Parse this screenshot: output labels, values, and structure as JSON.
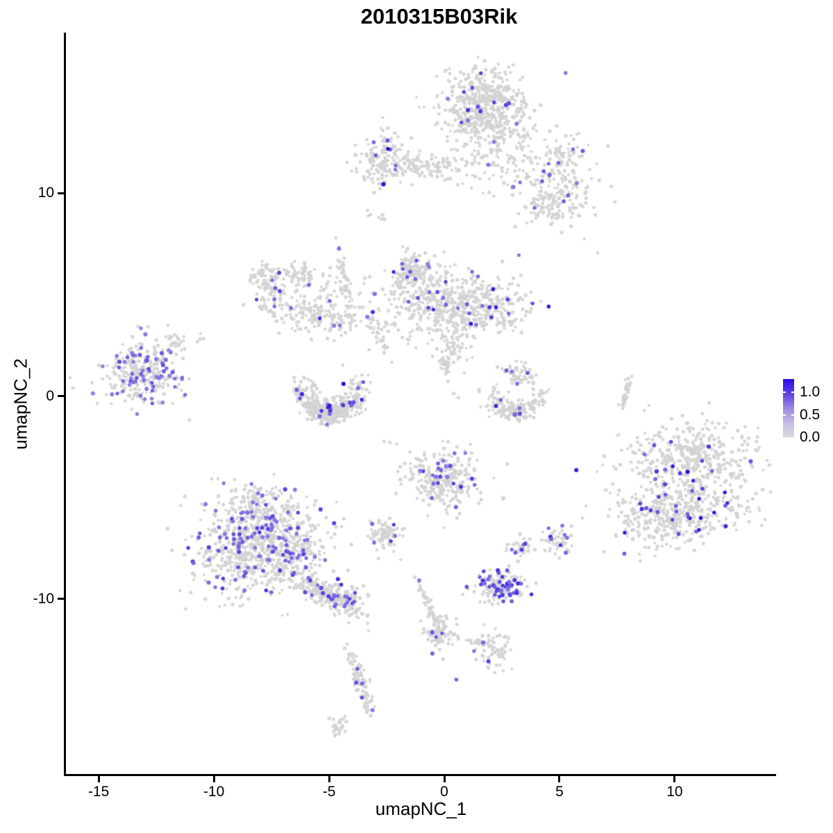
{
  "chart_data": {
    "type": "scatter",
    "title": "2010315B03Rik",
    "xlabel": "umapNC_1",
    "ylabel": "umapNC_2",
    "x_tick_labels": [
      "-15",
      "-10",
      "-5",
      "0",
      "5",
      "10"
    ],
    "x_tick_values": [
      -15,
      -10,
      -5,
      0,
      5,
      10
    ],
    "y_tick_labels": [
      "10",
      "0",
      "-10"
    ],
    "y_tick_values": [
      10,
      0,
      -10
    ],
    "xlim": [
      -16.42,
      14.4
    ],
    "ylim": [
      -18.63,
      17.92
    ],
    "grid": false,
    "legend_position": "right",
    "colors": {
      "background": "#ffffff",
      "axis": "#000000",
      "base_point": "#d3d3d3",
      "expression_low": "#b7abe4",
      "expression_high": "#2008dc"
    },
    "point_radius": 2.3,
    "seed": 42,
    "legend": {
      "value_range": [
        0,
        1.3
      ],
      "ticks": [
        {
          "label": "1.0",
          "value": 1.0,
          "dash": true
        },
        {
          "label": "0.5",
          "value": 0.5,
          "dash": true
        },
        {
          "label": "0.0",
          "value": 0.0,
          "dash": false
        }
      ],
      "gradient_stops": [
        {
          "p": 0.0,
          "c": "#d9d9d9"
        },
        {
          "p": 0.22,
          "c": "#c9c0e6"
        },
        {
          "p": 0.5,
          "c": "#9d88e0"
        },
        {
          "p": 0.77,
          "c": "#5b3be0"
        },
        {
          "p": 1.0,
          "c": "#2a0ce8"
        }
      ]
    },
    "clusters": [
      {
        "name": "top-main",
        "shape": "blob",
        "cx": 1.75,
        "cy": 14.2,
        "sx": 0.9,
        "sy": 0.95,
        "rot": 0,
        "n": 560,
        "frac": 0.035,
        "hi": [
          0.3,
          0.8
        ]
      },
      {
        "name": "top-south",
        "shape": "blob",
        "cx": 3.16,
        "cy": 11.6,
        "sx": 1.5,
        "sy": 0.95,
        "rot": 0,
        "n": 150,
        "frac": 0.03,
        "hi": [
          0.3,
          0.7
        ]
      },
      {
        "name": "top-arm-knob",
        "shape": "blob",
        "cx": 5.2,
        "cy": 11.7,
        "sx": 0.5,
        "sy": 0.55,
        "rot": 0,
        "n": 65,
        "frac": 0.03,
        "hi": [
          0.3,
          0.6
        ]
      },
      {
        "name": "right-mid-blob",
        "shape": "blob",
        "cx": 5.27,
        "cy": 9.86,
        "sx": 0.8,
        "sy": 0.6,
        "rot": 0,
        "n": 100,
        "frac": 0.07,
        "hi": [
          0.3,
          0.7
        ]
      },
      {
        "name": "below-left-blob",
        "shape": "blob",
        "cx": 4.4,
        "cy": 9.1,
        "sx": 0.55,
        "sy": 0.45,
        "rot": 0,
        "n": 60,
        "frac": 0.03,
        "hi": [
          0.3,
          0.6
        ]
      },
      {
        "name": "upper-left-knob",
        "shape": "blob",
        "cx": -2.65,
        "cy": 11.74,
        "sx": 0.55,
        "sy": 0.62,
        "rot": 0,
        "n": 140,
        "frac": 0.06,
        "hi": [
          0.4,
          1.0
        ]
      },
      {
        "name": "upper-left-band",
        "shape": "blob",
        "cx": -0.69,
        "cy": 11.4,
        "sx": 0.9,
        "sy": 0.35,
        "rot": -5,
        "n": 110,
        "frac": 0.015,
        "hi": [
          0.3,
          0.6
        ]
      },
      {
        "name": "hook-head",
        "shape": "blob",
        "cx": -7.7,
        "cy": 5.4,
        "sx": 0.33,
        "sy": 0.6,
        "rot": 20,
        "n": 90,
        "frac": 0.05,
        "hi": [
          0.3,
          0.7
        ]
      },
      {
        "name": "hook-top",
        "shape": "blob",
        "cx": -6.6,
        "cy": 6.0,
        "sx": 0.55,
        "sy": 0.3,
        "rot": -10,
        "n": 70,
        "frac": 0.02,
        "hi": [
          0.3,
          0.6
        ]
      },
      {
        "name": "band-down",
        "shape": "blob",
        "cx": -5.66,
        "cy": 3.9,
        "sx": 1.0,
        "sy": 0.42,
        "rot": -15,
        "n": 160,
        "frac": 0.05,
        "hi": [
          0.3,
          0.75
        ]
      },
      {
        "name": "sparse-mid",
        "shape": "blob",
        "cx": -4.97,
        "cy": 5.3,
        "sx": 0.85,
        "sy": 0.55,
        "rot": 0,
        "n": 50,
        "frac": 0.02,
        "hi": [
          0.3,
          0.6
        ]
      },
      {
        "name": "v-trail",
        "shape": "blob",
        "cx": -4.28,
        "cy": 5.6,
        "sx": 1.15,
        "sy": 0.09,
        "rot": -80,
        "n": 50,
        "frac": 0.02,
        "hi": [
          0.3,
          0.6
        ]
      },
      {
        "name": "diag-small",
        "shape": "blob",
        "cx": -2.83,
        "cy": 2.94,
        "sx": 0.8,
        "sy": 0.12,
        "rot": -60,
        "n": 30,
        "frac": 0.03,
        "hi": [
          0.3,
          0.6
        ]
      },
      {
        "name": "mid-knob",
        "shape": "blob",
        "cx": -1.45,
        "cy": 6.2,
        "sx": 0.42,
        "sy": 0.38,
        "rot": 0,
        "n": 120,
        "frac": 0.08,
        "hi": [
          0.3,
          0.8
        ]
      },
      {
        "name": "mid-main",
        "shape": "blob",
        "cx": -0.35,
        "cy": 4.6,
        "sx": 1.35,
        "sy": 0.95,
        "rot": 0,
        "n": 380,
        "frac": 0.05,
        "hi": [
          0.3,
          0.8
        ]
      },
      {
        "name": "mid-right-lobe",
        "shape": "blob",
        "cx": 1.81,
        "cy": 4.27,
        "sx": 1.0,
        "sy": 0.7,
        "rot": 0,
        "n": 220,
        "frac": 0.06,
        "hi": [
          0.35,
          0.9
        ]
      },
      {
        "name": "mid-funnel",
        "shape": "blob",
        "cx": 0.45,
        "cy": 2.63,
        "sx": 0.4,
        "sy": 0.6,
        "rot": 0,
        "n": 55,
        "frac": 0.02,
        "hi": [
          0.3,
          0.6
        ]
      },
      {
        "name": "mid-tail",
        "shape": "blob",
        "cx": 0.0,
        "cy": 1.54,
        "sx": 0.5,
        "sy": 0.1,
        "rot": -70,
        "n": 25,
        "frac": 0.05,
        "hi": [
          0.3,
          0.6
        ]
      },
      {
        "name": "left-cluster",
        "shape": "blob",
        "cx": -13.1,
        "cy": 1.15,
        "sx": 0.85,
        "sy": 0.8,
        "rot": 0,
        "n": 300,
        "frac": 0.22,
        "hi": [
          0.25,
          0.6
        ]
      },
      {
        "name": "left-arm",
        "shape": "blob",
        "cx": -11.54,
        "cy": 2.63,
        "sx": 0.3,
        "sy": 0.18,
        "rot": -35,
        "n": 22,
        "frac": 0.05,
        "hi": [
          0.3,
          0.55
        ]
      },
      {
        "name": "u-crescent",
        "shape": "arc",
        "cx": -4.95,
        "cy": 0.45,
        "r": 1.3,
        "w": 0.3,
        "a0": 150,
        "a1": 390,
        "n": 400,
        "frac": 0.07,
        "hi": [
          0.35,
          1.0
        ]
      },
      {
        "name": "crescent-right",
        "shape": "arc",
        "cx": 3.07,
        "cy": 0.3,
        "r": 1.1,
        "w": 0.25,
        "a0": 150,
        "a1": 390,
        "n": 160,
        "frac": 0.04,
        "hi": [
          0.35,
          1.0
        ]
      },
      {
        "name": "crescent-right-head",
        "shape": "blob",
        "cx": 3.25,
        "cy": 1.05,
        "sx": 0.38,
        "sy": 0.33,
        "rot": 0,
        "n": 55,
        "frac": 0.05,
        "hi": [
          0.3,
          0.6
        ]
      },
      {
        "name": "v-streak-right",
        "shape": "blob",
        "cx": 7.92,
        "cy": 0.27,
        "sx": 0.5,
        "sy": 0.07,
        "rot": 80,
        "n": 35,
        "frac": 0,
        "hi": [
          0.3,
          0.5
        ]
      },
      {
        "name": "right-cluster-top",
        "shape": "blob",
        "cx": 10.8,
        "cy": -3.1,
        "sx": 1.35,
        "sy": 0.85,
        "rot": -8,
        "n": 430,
        "frac": 0.04,
        "hi": [
          0.4,
          1.0
        ]
      },
      {
        "name": "right-cluster-bottom",
        "shape": "blob",
        "cx": 10.0,
        "cy": -5.8,
        "sx": 1.35,
        "sy": 0.8,
        "rot": 8,
        "n": 470,
        "frac": 0.07,
        "hi": [
          0.45,
          1.0
        ]
      },
      {
        "name": "center-bottom",
        "shape": "blob",
        "cx": -0.1,
        "cy": -4.05,
        "sx": 0.8,
        "sy": 0.75,
        "rot": 0,
        "n": 270,
        "frac": 0.075,
        "hi": [
          0.3,
          0.85
        ]
      },
      {
        "name": "small-left-bottom",
        "shape": "blob",
        "cx": -2.55,
        "cy": -6.85,
        "sx": 0.35,
        "sy": 0.4,
        "rot": 0,
        "n": 85,
        "frac": 0.045,
        "hi": [
          0.3,
          0.7
        ]
      },
      {
        "name": "bl-top-knob",
        "shape": "blob",
        "cx": -7.9,
        "cy": -5.3,
        "sx": 0.85,
        "sy": 0.55,
        "rot": 0,
        "n": 140,
        "frac": 0.07,
        "hi": [
          0.3,
          0.7
        ]
      },
      {
        "name": "bl-main",
        "shape": "blob",
        "cx": -8.5,
        "cy": -7.5,
        "sx": 1.25,
        "sy": 1.15,
        "rot": 0,
        "n": 560,
        "frac": 0.13,
        "hi": [
          0.3,
          0.7
        ]
      },
      {
        "name": "bl-right",
        "shape": "blob",
        "cx": -6.8,
        "cy": -7.3,
        "sx": 0.9,
        "sy": 0.9,
        "rot": 0,
        "n": 240,
        "frac": 0.06,
        "hi": [
          0.3,
          0.7
        ]
      },
      {
        "name": "bl-tail",
        "shape": "blob",
        "cx": -5.3,
        "cy": -9.7,
        "sx": 0.9,
        "sy": 0.28,
        "rot": -35,
        "n": 200,
        "frac": 0.07,
        "hi": [
          0.3,
          0.75
        ]
      },
      {
        "name": "bl-tail-end",
        "shape": "blob",
        "cx": -4.35,
        "cy": -9.85,
        "sx": 0.5,
        "sy": 0.42,
        "rot": -35,
        "n": 90,
        "frac": 0.12,
        "hi": [
          0.35,
          0.8
        ]
      },
      {
        "name": "pair-left",
        "shape": "blob",
        "cx": 3.25,
        "cy": -7.47,
        "sx": 0.28,
        "sy": 0.26,
        "rot": 0,
        "n": 38,
        "frac": 0.1,
        "hi": [
          0.35,
          0.8
        ]
      },
      {
        "name": "pair-right",
        "shape": "blob",
        "cx": 4.94,
        "cy": -7.2,
        "sx": 0.38,
        "sy": 0.33,
        "rot": 0,
        "n": 48,
        "frac": 0.14,
        "hi": [
          0.35,
          0.8
        ]
      },
      {
        "name": "dense-small",
        "shape": "blob",
        "cx": 2.4,
        "cy": -9.4,
        "sx": 0.55,
        "sy": 0.35,
        "rot": 0,
        "n": 165,
        "frac": 0.3,
        "hi": [
          0.35,
          0.8
        ]
      },
      {
        "name": "down-streak",
        "shape": "blob",
        "cx": -0.66,
        "cy": -10.37,
        "sx": 0.8,
        "sy": 0.1,
        "rot": -68,
        "n": 50,
        "frac": 0.02,
        "hi": [
          0.3,
          0.6
        ]
      },
      {
        "name": "down-streak-blob",
        "shape": "blob",
        "cx": -0.24,
        "cy": -11.67,
        "sx": 0.33,
        "sy": 0.45,
        "rot": 0,
        "n": 70,
        "frac": 0.06,
        "hi": [
          0.3,
          0.7
        ]
      },
      {
        "name": "dash-trail",
        "shape": "blob",
        "cx": 0.96,
        "cy": -12.01,
        "sx": 0.65,
        "sy": 0.08,
        "rot": -15,
        "n": 20,
        "frac": 0,
        "hi": [
          0.3,
          0.5
        ]
      },
      {
        "name": "small-right-blob",
        "shape": "blob",
        "cx": 2.14,
        "cy": -12.56,
        "sx": 0.42,
        "sy": 0.48,
        "rot": 0,
        "n": 65,
        "frac": 0.04,
        "hi": [
          0.3,
          0.7
        ]
      },
      {
        "name": "lone-pair",
        "shape": "blob",
        "cx": 0.45,
        "cy": -13.99,
        "sx": 0.1,
        "sy": 0.08,
        "rot": 0,
        "n": 2,
        "frac": 0.7,
        "hi": [
          0.4,
          0.6
        ]
      },
      {
        "name": "bottom-streak",
        "shape": "blob",
        "cx": -3.58,
        "cy": -14.27,
        "sx": 0.75,
        "sy": 0.18,
        "rot": -72,
        "n": 90,
        "frac": 0.06,
        "hi": [
          0.3,
          0.7
        ]
      },
      {
        "name": "bottom-streak-end",
        "shape": "blob",
        "cx": -4.58,
        "cy": -16.18,
        "sx": 0.25,
        "sy": 0.28,
        "rot": 0,
        "n": 28,
        "frac": 0,
        "hi": [
          0.3,
          0.5
        ]
      },
      {
        "name": "tiny-smudge",
        "shape": "blob",
        "cx": -2.83,
        "cy": 8.8,
        "sx": 0.28,
        "sy": 0.1,
        "rot": -25,
        "n": 8,
        "frac": 0,
        "hi": [
          0.3,
          0.5
        ]
      },
      {
        "name": "iso-dot-1",
        "shape": "blob",
        "cx": 5.06,
        "cy": 8.05,
        "sx": 0.04,
        "sy": 0.04,
        "rot": 0,
        "n": 1,
        "frac": 0,
        "hi": [
          0.3,
          0.5
        ]
      },
      {
        "name": "iso-dot-2",
        "shape": "blob",
        "cx": 6.69,
        "cy": 7.1,
        "sx": 0.04,
        "sy": 0.04,
        "rot": 0,
        "n": 1,
        "frac": 0,
        "hi": [
          0.3,
          0.5
        ]
      },
      {
        "name": "iso-pair",
        "shape": "blob",
        "cx": 2.65,
        "cy": -5.02,
        "sx": 0.12,
        "sy": 0.08,
        "rot": 0,
        "n": 3,
        "frac": 0,
        "hi": [
          0.3,
          0.5
        ]
      },
      {
        "name": "iso-left",
        "shape": "blob",
        "cx": -10.66,
        "cy": 2.8,
        "sx": 0.2,
        "sy": 0.14,
        "rot": 0,
        "n": 4,
        "frac": 0,
        "hi": [
          0.3,
          0.5
        ]
      },
      {
        "name": "iso-mid",
        "shape": "blob",
        "cx": -2.4,
        "cy": -2.3,
        "sx": 0.18,
        "sy": 0.12,
        "rot": 0,
        "n": 3,
        "frac": 0,
        "hi": [
          0.3,
          0.5
        ]
      }
    ]
  }
}
